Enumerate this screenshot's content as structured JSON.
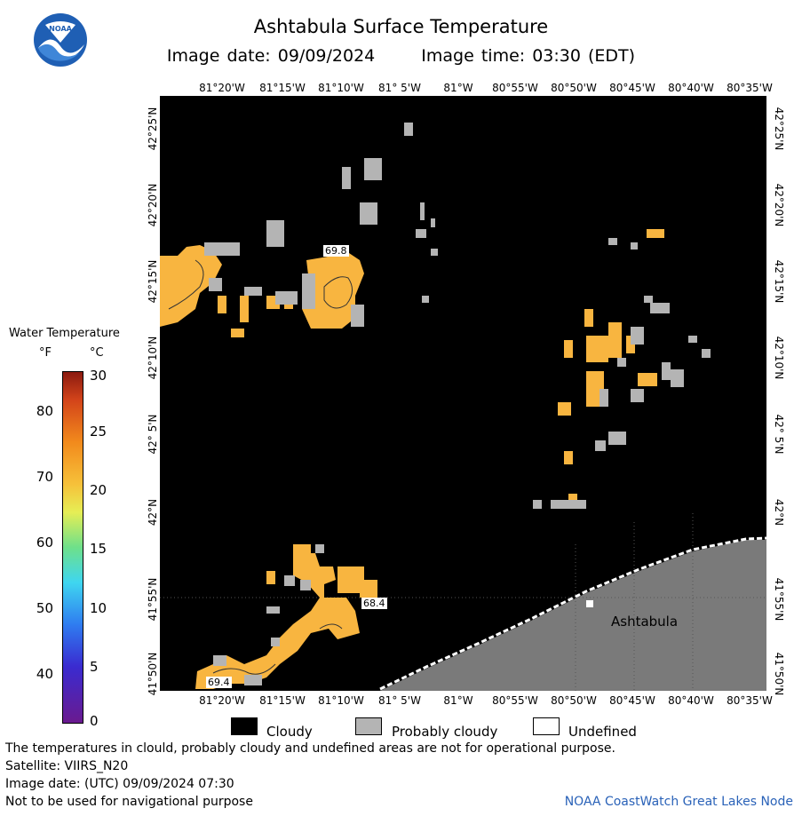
{
  "title": "Ashtabula Surface Temperature",
  "image_date": "Image date: 09/09/2024",
  "image_time": "Image time: 03:30 (EDT)",
  "logo_text": "NOAA",
  "lon_labels": [
    "81°20'W",
    "81°15'W",
    "81°10'W",
    "81° 5'W",
    "81°W",
    "80°55'W",
    "80°50'W",
    "80°45'W",
    "80°40'W",
    "80°35'W"
  ],
  "lat_labels": [
    "42°25'N",
    "42°20'N",
    "42°15'N",
    "42°10'N",
    "42° 5'N",
    "42°N",
    "41°55'N",
    "41°50'N"
  ],
  "map_labels": {
    "city": "Ashtabula",
    "temp_a": "69.8",
    "temp_b": "68.4",
    "temp_c": "69.4"
  },
  "legend": {
    "title": "Water Temperature",
    "unit_f": "°F",
    "unit_c": "°C",
    "ticks_f": [
      "80",
      "70",
      "60",
      "50",
      "40"
    ],
    "ticks_c": [
      "30",
      "25",
      "20",
      "15",
      "10",
      "5",
      "0"
    ]
  },
  "key": {
    "cloudy": "Cloudy",
    "probably_cloudy": "Probably cloudy",
    "undefined": "Undefined"
  },
  "footer": {
    "line1": "The temperatures in clould, probably cloudy and undefined areas are not for operational purpose.",
    "line2": "Satellite: VIIRS_N20",
    "line3": "Image date: (UTC) 09/09/2024  07:30",
    "line4": "Not to be used for navigational purpose",
    "node": "NOAA CoastWatch Great Lakes Node"
  },
  "colors": {
    "water_warm": "#f8b540",
    "probably_cloudy": "#b4b4b4",
    "cloudy": "#000000",
    "land": "#7a7a7a",
    "link": "#2a62b8"
  }
}
